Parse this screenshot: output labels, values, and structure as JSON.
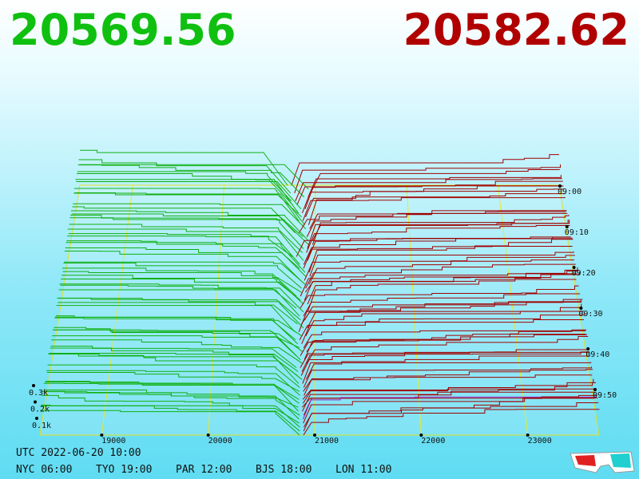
{
  "prices": {
    "bid": "20569.56",
    "ask": "20582.62"
  },
  "price_axis": {
    "ticks": [
      "19000",
      "20000",
      "21000",
      "22000",
      "23000"
    ]
  },
  "depth_axis": {
    "ticks": [
      "0.1k",
      "0.2k",
      "0.3k"
    ]
  },
  "time_axis": {
    "ticks": [
      "09:00",
      "09:10",
      "09:20",
      "09:30",
      "09:40",
      "09:50"
    ]
  },
  "clock": {
    "utc": "UTC 2022-06-20 10:00",
    "cities": [
      "NYC 06:00",
      "TYO 19:00",
      "PAR 12:00",
      "BJS 18:00",
      "LON 11:00"
    ]
  }
}
